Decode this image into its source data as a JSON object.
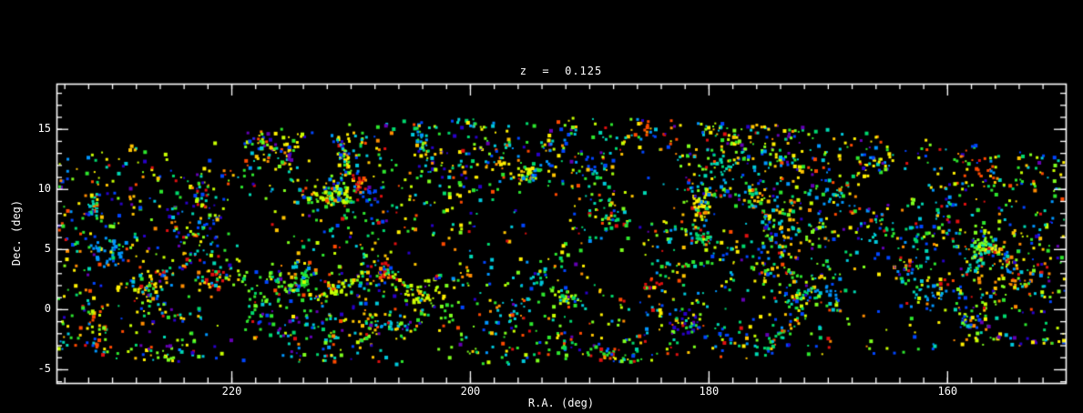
{
  "chart_data": {
    "type": "scatter",
    "title": "z  =  0.125",
    "xlabel": "R.A. (deg)",
    "ylabel": "Dec. (deg)",
    "x_ticks": [
      220,
      200,
      180,
      160
    ],
    "x_tick_labels": [
      "220",
      "200",
      "180",
      "160"
    ],
    "y_ticks": [
      -5,
      0,
      5,
      10,
      15
    ],
    "y_tick_labels": [
      "-5",
      "0",
      "5",
      "10",
      "15"
    ],
    "x_minor_step": 2,
    "y_minor_step": 1,
    "xlim": [
      234.7,
      150.1
    ],
    "ylim": [
      -6.1,
      18.8
    ],
    "x_axis_reversed": true,
    "background": "#000000",
    "frame_color": "#ffffff",
    "description": "Sky distribution of survey galaxies in a redshift slice; each square is one galaxy, color-coded, forming filaments, clusters and voids in a curved survey stripe spanning R.A. ~150-235 deg and Dec. ~ -5 to +16 deg.",
    "palette": [
      {
        "color": "#e01010",
        "w": 5
      },
      {
        "color": "#ff4a00",
        "w": 5
      },
      {
        "color": "#ff8c00",
        "w": 6
      },
      {
        "color": "#ffc400",
        "w": 7
      },
      {
        "color": "#fff000",
        "w": 9
      },
      {
        "color": "#c8ff00",
        "w": 8
      },
      {
        "color": "#7dff1e",
        "w": 9
      },
      {
        "color": "#2ee62e",
        "w": 12
      },
      {
        "color": "#00d96e",
        "w": 8
      },
      {
        "color": "#00d9b4",
        "w": 6
      },
      {
        "color": "#00c8dc",
        "w": 7
      },
      {
        "color": "#0096ff",
        "w": 6
      },
      {
        "color": "#0046ff",
        "w": 8
      },
      {
        "color": "#2800c8",
        "w": 4
      },
      {
        "color": "#6400b4",
        "w": 3
      }
    ],
    "generation": {
      "seed": 1337,
      "n_clusters": 80,
      "cluster_min_points": 8,
      "cluster_max_points": 42,
      "cluster_spread": 1.6,
      "cluster_color_coherence": 0.55,
      "n_filaments": 30,
      "filament_min_len": 4,
      "filament_max_len": 13,
      "filament_min_points": 18,
      "filament_max_points": 45,
      "filament_jitter": 0.38,
      "filament_color_coherence": 0.35,
      "n_background": 2300,
      "n_voids": 26,
      "void_min_radius": 1.3,
      "void_max_radius": 3.6,
      "void_rejection": 0.82,
      "band": {
        "ra_min": 150.2,
        "ra_max": 234.6,
        "top_peak": 16.0,
        "top_center": 193,
        "top_halfwidth": 42,
        "top_drop": 3.3,
        "bottom_base": -4.6,
        "bottom_center": 204,
        "bottom_halfwidth": 55,
        "bottom_rise": 1.9
      },
      "point_sizes": [
        2,
        3,
        4
      ],
      "point_size_weights": [
        18,
        62,
        20
      ]
    }
  }
}
